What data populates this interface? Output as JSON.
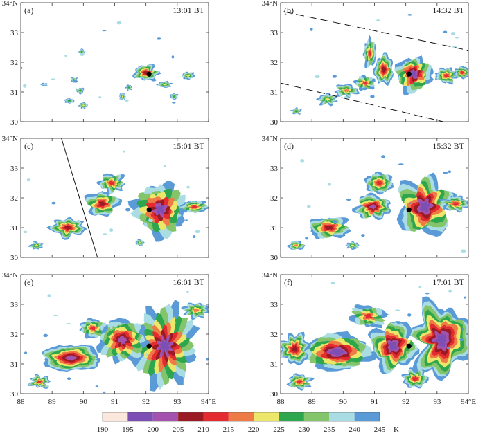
{
  "chart_data": {
    "type": "heatmap",
    "variable_unit": "K",
    "x_axis": {
      "range": [
        88,
        94
      ],
      "ticks": [
        88,
        89,
        90,
        91,
        92,
        93,
        94
      ],
      "tick_labels": [
        "88",
        "89",
        "90",
        "91",
        "92",
        "93",
        "94°E"
      ]
    },
    "y_axis": {
      "range": [
        30,
        34
      ],
      "ticks": [
        30,
        31,
        32,
        33,
        34
      ],
      "tick_labels": [
        "30",
        "31",
        "32",
        "33",
        "34°N"
      ]
    },
    "reference_point": {
      "lon": 92.1,
      "lat": 31.6
    },
    "colorbar": {
      "levels": [
        190,
        195,
        200,
        205,
        210,
        215,
        220,
        225,
        230,
        235,
        240,
        245
      ],
      "colors": [
        "#fbe7dc",
        "#7b4fb4",
        "#a353ad",
        "#9a1b24",
        "#e42b30",
        "#ee7b46",
        "#ece76a",
        "#2ea64d",
        "#84c56b",
        "#a9dde3",
        "#5a9ad6"
      ],
      "unit_label": "K"
    },
    "panels": [
      {
        "label": "(a)",
        "time": "13:01 BT",
        "cells": [
          {
            "lon": 92.0,
            "lat": 31.65,
            "rx": 0.38,
            "ry": 0.26,
            "min_k": 206
          },
          {
            "lon": 89.95,
            "lat": 32.35,
            "rx": 0.09,
            "ry": 0.11,
            "min_k": 226
          },
          {
            "lon": 89.7,
            "lat": 31.4,
            "rx": 0.1,
            "ry": 0.09,
            "min_k": 228
          },
          {
            "lon": 89.9,
            "lat": 31.05,
            "rx": 0.12,
            "ry": 0.1,
            "min_k": 226
          },
          {
            "lon": 89.55,
            "lat": 30.7,
            "rx": 0.16,
            "ry": 0.08,
            "min_k": 225
          },
          {
            "lon": 90.0,
            "lat": 30.55,
            "rx": 0.13,
            "ry": 0.1,
            "min_k": 222
          },
          {
            "lon": 91.25,
            "lat": 30.85,
            "rx": 0.1,
            "ry": 0.11,
            "min_k": 224
          },
          {
            "lon": 91.45,
            "lat": 31.15,
            "rx": 0.1,
            "ry": 0.09,
            "min_k": 226
          },
          {
            "lon": 92.6,
            "lat": 31.25,
            "rx": 0.22,
            "ry": 0.1,
            "min_k": 224
          },
          {
            "lon": 93.35,
            "lat": 31.55,
            "rx": 0.2,
            "ry": 0.12,
            "min_k": 222
          },
          {
            "lon": 92.9,
            "lat": 30.85,
            "rx": 0.12,
            "ry": 0.1,
            "min_k": 225
          },
          {
            "lon": 88.75,
            "lat": 31.25,
            "rx": 0.1,
            "ry": 0.05,
            "min_k": 235
          }
        ]
      },
      {
        "label": "(b)",
        "time": "14:32 BT",
        "cells": [
          {
            "lon": 92.25,
            "lat": 31.6,
            "rx": 0.55,
            "ry": 0.55,
            "min_k": 198
          },
          {
            "lon": 93.3,
            "lat": 31.55,
            "rx": 0.35,
            "ry": 0.25,
            "min_k": 210
          },
          {
            "lon": 93.8,
            "lat": 31.65,
            "rx": 0.25,
            "ry": 0.2,
            "min_k": 212
          },
          {
            "lon": 91.3,
            "lat": 31.75,
            "rx": 0.3,
            "ry": 0.5,
            "min_k": 208
          },
          {
            "lon": 90.85,
            "lat": 32.3,
            "rx": 0.2,
            "ry": 0.45,
            "min_k": 212
          },
          {
            "lon": 90.7,
            "lat": 31.3,
            "rx": 0.3,
            "ry": 0.2,
            "min_k": 213
          },
          {
            "lon": 90.1,
            "lat": 31.05,
            "rx": 0.35,
            "ry": 0.2,
            "min_k": 216
          },
          {
            "lon": 89.5,
            "lat": 30.75,
            "rx": 0.3,
            "ry": 0.18,
            "min_k": 220
          },
          {
            "lon": 88.5,
            "lat": 30.35,
            "rx": 0.15,
            "ry": 0.1,
            "min_k": 228
          }
        ]
      },
      {
        "label": "(c)",
        "time": "15:01 BT",
        "cells": [
          {
            "lon": 92.45,
            "lat": 31.6,
            "rx": 0.75,
            "ry": 0.8,
            "min_k": 198
          },
          {
            "lon": 93.55,
            "lat": 31.7,
            "rx": 0.4,
            "ry": 0.2,
            "min_k": 212
          },
          {
            "lon": 90.6,
            "lat": 31.8,
            "rx": 0.5,
            "ry": 0.4,
            "min_k": 208
          },
          {
            "lon": 90.9,
            "lat": 32.5,
            "rx": 0.4,
            "ry": 0.3,
            "min_k": 214
          },
          {
            "lon": 89.5,
            "lat": 31.0,
            "rx": 0.55,
            "ry": 0.3,
            "min_k": 208
          },
          {
            "lon": 88.5,
            "lat": 30.4,
            "rx": 0.2,
            "ry": 0.12,
            "min_k": 220
          },
          {
            "lon": 91.8,
            "lat": 30.5,
            "rx": 0.12,
            "ry": 0.1,
            "min_k": 222
          }
        ]
      },
      {
        "label": "(d)",
        "time": "15:32 BT",
        "cells": [
          {
            "lon": 92.6,
            "lat": 31.7,
            "rx": 0.85,
            "ry": 0.95,
            "min_k": 196
          },
          {
            "lon": 93.6,
            "lat": 31.8,
            "rx": 0.4,
            "ry": 0.25,
            "min_k": 212
          },
          {
            "lon": 90.95,
            "lat": 31.7,
            "rx": 0.55,
            "ry": 0.4,
            "min_k": 202
          },
          {
            "lon": 91.15,
            "lat": 32.5,
            "rx": 0.45,
            "ry": 0.35,
            "min_k": 212
          },
          {
            "lon": 89.55,
            "lat": 31.0,
            "rx": 0.65,
            "ry": 0.35,
            "min_k": 206
          },
          {
            "lon": 88.5,
            "lat": 30.4,
            "rx": 0.25,
            "ry": 0.15,
            "min_k": 218
          },
          {
            "lon": 90.3,
            "lat": 30.4,
            "rx": 0.2,
            "ry": 0.12,
            "min_k": 220
          }
        ]
      },
      {
        "label": "(e)",
        "time": "16:01 BT",
        "cells": [
          {
            "lon": 92.6,
            "lat": 31.6,
            "rx": 0.9,
            "ry": 1.15,
            "min_k": 196
          },
          {
            "lon": 91.25,
            "lat": 31.8,
            "rx": 0.75,
            "ry": 0.7,
            "min_k": 200
          },
          {
            "lon": 89.6,
            "lat": 31.2,
            "rx": 0.95,
            "ry": 0.45,
            "min_k": 200
          },
          {
            "lon": 90.3,
            "lat": 32.2,
            "rx": 0.4,
            "ry": 0.3,
            "min_k": 212
          },
          {
            "lon": 88.6,
            "lat": 30.4,
            "rx": 0.3,
            "ry": 0.2,
            "min_k": 212
          },
          {
            "lon": 93.6,
            "lat": 32.8,
            "rx": 0.4,
            "ry": 0.25,
            "min_k": 216
          }
        ]
      },
      {
        "label": "(f)",
        "time": "17:01 BT",
        "cells": [
          {
            "lon": 93.15,
            "lat": 31.8,
            "rx": 0.9,
            "ry": 1.2,
            "min_k": 198
          },
          {
            "lon": 91.6,
            "lat": 31.6,
            "rx": 0.7,
            "ry": 0.8,
            "min_k": 196
          },
          {
            "lon": 89.8,
            "lat": 31.4,
            "rx": 1.1,
            "ry": 0.6,
            "min_k": 198
          },
          {
            "lon": 88.45,
            "lat": 31.5,
            "rx": 0.45,
            "ry": 0.5,
            "min_k": 208
          },
          {
            "lon": 88.6,
            "lat": 30.4,
            "rx": 0.35,
            "ry": 0.25,
            "min_k": 212
          },
          {
            "lon": 90.8,
            "lat": 32.6,
            "rx": 0.5,
            "ry": 0.35,
            "min_k": 214
          },
          {
            "lon": 92.3,
            "lat": 30.5,
            "rx": 0.4,
            "ry": 0.3,
            "min_k": 214
          }
        ]
      }
    ]
  }
}
